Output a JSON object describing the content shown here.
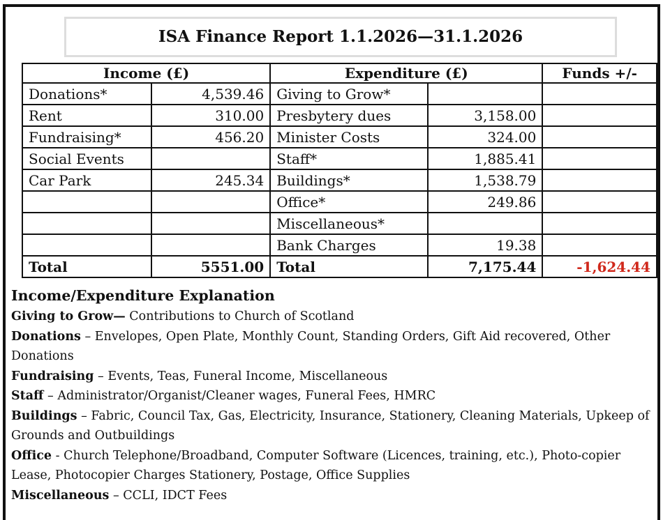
{
  "title": "ISA Finance Report 1.1.2026—31.1.2026",
  "table": {
    "headers": [
      "Income (£)",
      "Expenditure (£)",
      "Funds +/-"
    ],
    "rows": [
      [
        "Donations*",
        "4,539.46",
        "Giving to Grow*",
        null,
        null
      ],
      [
        "Rent",
        "310.00",
        "Presbytery dues",
        "3,158.00",
        null
      ],
      [
        "Fundraising*",
        "456.20",
        "Minister Costs",
        "324.00",
        null
      ],
      [
        "Social Events",
        null,
        "Staff*",
        "1,885.41",
        null
      ],
      [
        "Car Park",
        "245.34",
        "Buildings*",
        "1,538.79",
        null
      ],
      [
        null,
        null,
        "Office*",
        "249.86",
        null
      ],
      [
        null,
        null,
        "Miscellaneous*",
        null,
        null
      ],
      [
        null,
        null,
        "Bank Charges",
        "19.38",
        null
      ]
    ],
    "total": [
      "Total",
      "5551.00",
      "Total",
      "7,175.44",
      "-1,624.44"
    ]
  },
  "explanation": {
    "title": "Income/Expenditure Explanation",
    "items": [
      {
        "term": "Giving to Grow—",
        "text": "Contributions to Church of Scotland"
      },
      {
        "term": "Donations",
        "text": "– Envelopes, Open Plate, Monthly Count, Standing Orders, Gift Aid recovered, Other Donations"
      },
      {
        "term": "Fundraising",
        "text": "– Events, Teas, Funeral Income, Miscellaneous"
      },
      {
        "term": "Staff",
        "text": "– Administrator/Organist/Cleaner wages, Funeral Fees, HMRC"
      },
      {
        "term": "Buildings",
        "text": "– Fabric, Council Tax, Gas, Electricity, Insurance, Stationery, Cleaning Materials, Upkeep of Grounds and Outbuildings"
      },
      {
        "term": "Office",
        "text": "- Church Telephone/Broadband, Computer Software (Licences, training, etc.), Photo-copier Lease, Photocopier Charges Stationery, Postage, Office Supplies"
      },
      {
        "term": "Miscellaneous",
        "text": "– CCLI, IDCT Fees"
      }
    ]
  }
}
